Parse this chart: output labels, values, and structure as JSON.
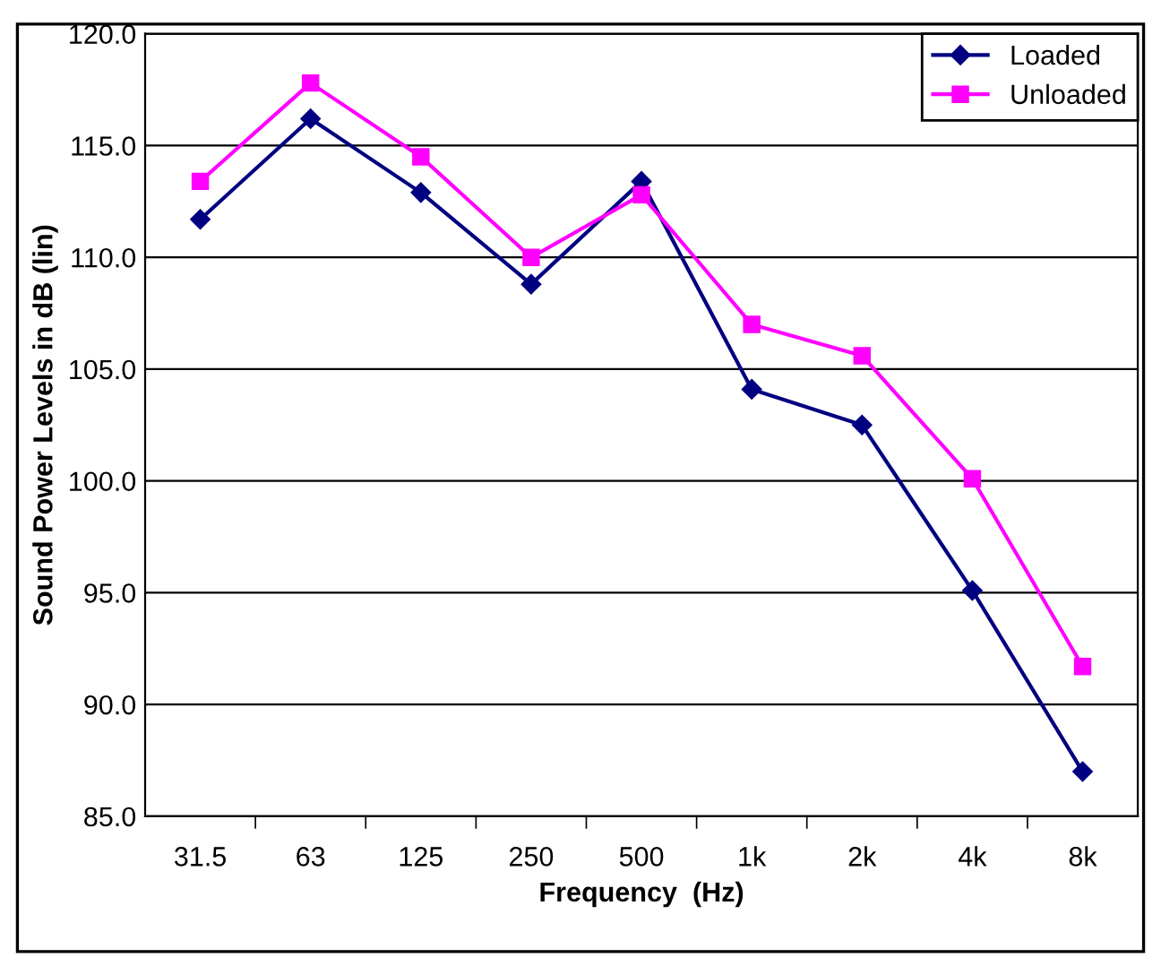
{
  "chart_data": {
    "type": "line",
    "xlabel": "Frequency  (Hz)",
    "ylabel": "Sound Power Levels in dB (lin)",
    "categories": [
      "31.5",
      "63",
      "125",
      "250",
      "500",
      "1k",
      "2k",
      "4k",
      "8k"
    ],
    "series": [
      {
        "name": "Loaded",
        "color": "#000080",
        "marker": "diamond",
        "values": [
          111.7,
          116.2,
          112.9,
          108.8,
          113.4,
          104.1,
          102.5,
          95.1,
          87.0
        ]
      },
      {
        "name": "Unloaded",
        "color": "#ff00ff",
        "marker": "square",
        "values": [
          113.4,
          117.8,
          114.5,
          110.0,
          112.8,
          107.0,
          105.6,
          100.1,
          91.7
        ]
      }
    ],
    "ylim": [
      85,
      120
    ],
    "yticks": [
      {
        "value": 85,
        "label": "85.0"
      },
      {
        "value": 90,
        "label": "90.0"
      },
      {
        "value": 95,
        "label": "95.0"
      },
      {
        "value": 100,
        "label": "100.0"
      },
      {
        "value": 105,
        "label": "105.0"
      },
      {
        "value": 110,
        "label": "110.0"
      },
      {
        "value": 115,
        "label": "115.0"
      },
      {
        "value": 120,
        "label": "120.0"
      }
    ],
    "grid": "y",
    "legend": "top right"
  }
}
